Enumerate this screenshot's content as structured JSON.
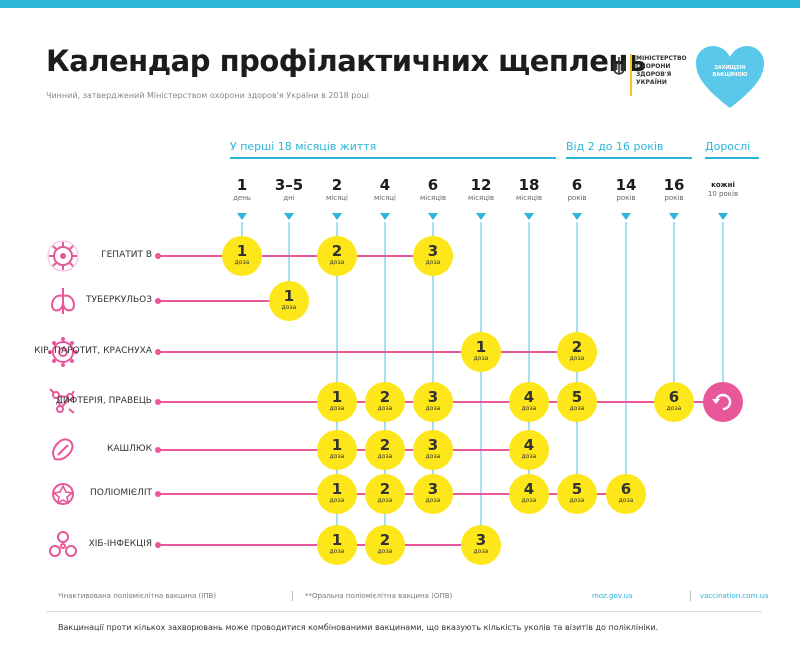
{
  "header": {
    "title": "Календар профілактичних щеплень",
    "subtitle": "Чинний, затверджений Міністерством охорони здоров'я України в 2018 році",
    "ministry_text": "МІНІСТЕРСТВО ОХОРОНИ ЗДОРОВ'Я УКРАЇНИ",
    "heart_text": "ЗАХИЩЕНІ ВАКЦИНОЮ",
    "accent_color": "#29b6d8",
    "line_color": "#e8579a",
    "dose_color": "#fde619"
  },
  "groups": [
    {
      "label": "У перші 18 місяців життя"
    },
    {
      "label": "Від 2 до 16 років"
    },
    {
      "label": "Дорослі"
    }
  ],
  "ages": [
    {
      "num": "1",
      "unit": "день"
    },
    {
      "num": "3–5",
      "unit": "дні"
    },
    {
      "num": "2",
      "unit": "місяці"
    },
    {
      "num": "4",
      "unit": "місяці"
    },
    {
      "num": "6",
      "unit": "місяців"
    },
    {
      "num": "12",
      "unit": "місяців"
    },
    {
      "num": "18",
      "unit": "місяців"
    },
    {
      "num": "6",
      "unit": "років"
    },
    {
      "num": "14",
      "unit": "років"
    },
    {
      "num": "16",
      "unit": "років"
    },
    {
      "num": "кожні",
      "unit": "10 років"
    }
  ],
  "rows": [
    {
      "label": "ГЕПАТИТ B",
      "icon": "virus-icon"
    },
    {
      "label": "ТУБЕРКУЛЬОЗ",
      "icon": "lungs-icon"
    },
    {
      "label": "КІР, ПАРОТИТ, КРАСНУХА",
      "icon": "measles-virus-icon"
    },
    {
      "label": "ДИФТЕРІЯ, ПРАВЕЦЬ",
      "icon": "bacteria-icon"
    },
    {
      "label": "КАШЛЮК",
      "icon": "pertussis-icon"
    },
    {
      "label": "ПОЛІОМІЄЛІТ",
      "icon": "polio-virus-icon"
    },
    {
      "label": "ХІБ-ІНФЕКЦІЯ",
      "icon": "hib-icon"
    }
  ],
  "dose_unit": "доза",
  "dose_marks": [
    "*",
    "**"
  ],
  "doses": [
    {
      "row": 0,
      "col": 0,
      "n": "1"
    },
    {
      "row": 0,
      "col": 2,
      "n": "2"
    },
    {
      "row": 0,
      "col": 4,
      "n": "3"
    },
    {
      "row": 1,
      "col": 1,
      "n": "1"
    },
    {
      "row": 2,
      "col": 5,
      "n": "1"
    },
    {
      "row": 2,
      "col": 7,
      "n": "2"
    },
    {
      "row": 3,
      "col": 2,
      "n": "1"
    },
    {
      "row": 3,
      "col": 3,
      "n": "2"
    },
    {
      "row": 3,
      "col": 4,
      "n": "3"
    },
    {
      "row": 3,
      "col": 6,
      "n": "4"
    },
    {
      "row": 3,
      "col": 7,
      "n": "5"
    },
    {
      "row": 3,
      "col": 9,
      "n": "6"
    },
    {
      "row": 4,
      "col": 2,
      "n": "1"
    },
    {
      "row": 4,
      "col": 3,
      "n": "2"
    },
    {
      "row": 4,
      "col": 4,
      "n": "3"
    },
    {
      "row": 4,
      "col": 6,
      "n": "4"
    },
    {
      "row": 5,
      "col": 2,
      "n": "1"
    },
    {
      "row": 5,
      "col": 3,
      "n": "2"
    },
    {
      "row": 5,
      "col": 4,
      "n": "3"
    },
    {
      "row": 5,
      "col": 6,
      "n": "4"
    },
    {
      "row": 5,
      "col": 7,
      "n": "5"
    },
    {
      "row": 5,
      "col": 8,
      "n": "6"
    },
    {
      "row": 6,
      "col": 2,
      "n": "1"
    },
    {
      "row": 6,
      "col": 3,
      "n": "2"
    },
    {
      "row": 6,
      "col": 5,
      "n": "3"
    }
  ],
  "adult_dose": {
    "row": 3,
    "col": 10,
    "icon": "repeat-icon"
  },
  "footnotes": {
    "note1": "*Інактивована поліомієлітна вакцина (ІПВ)",
    "note2": "**Оральна поліомієлітна вакцина (ОПВ)",
    "link1": "moz.gov.ua",
    "link2": "vaccination.com.ua",
    "bottom": "Вакцинації проти кількох захворювань може проводитися комбінованими вакцинами, що вказують кількість уколів та візитів до поліклініки."
  }
}
